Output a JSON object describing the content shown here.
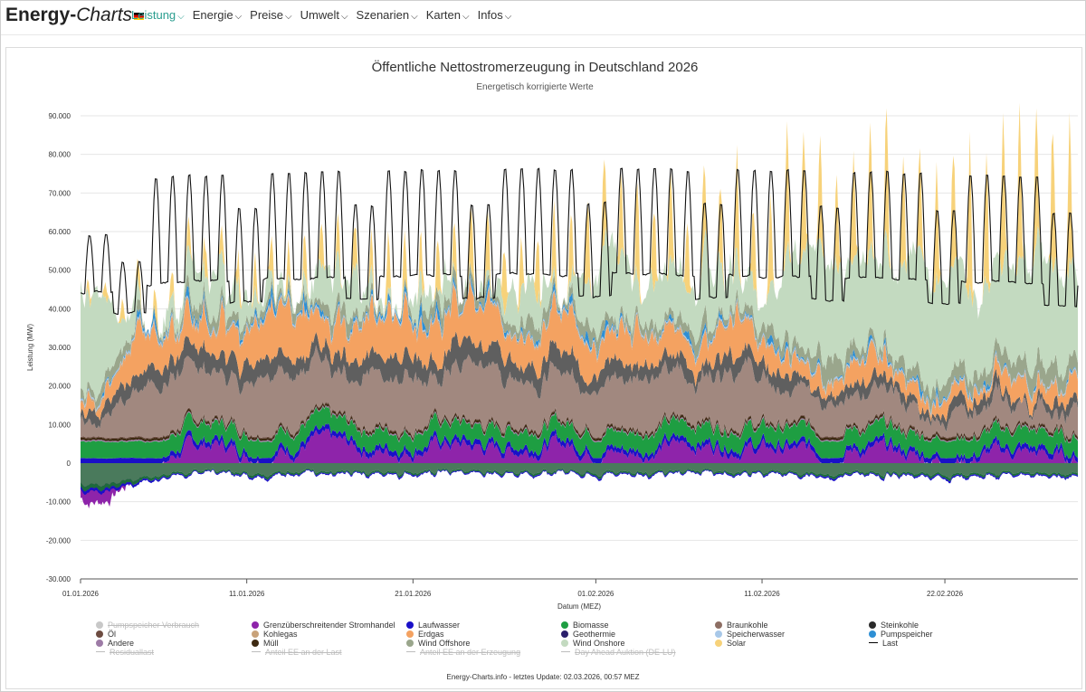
{
  "nav": {
    "brand_main": "Energy-",
    "brand_italic": "Charts",
    "items": [
      {
        "label": "Leistung",
        "active": true
      },
      {
        "label": "Energie",
        "active": false
      },
      {
        "label": "Preise",
        "active": false
      },
      {
        "label": "Umwelt",
        "active": false
      },
      {
        "label": "Szenarien",
        "active": false
      },
      {
        "label": "Karten",
        "active": false
      },
      {
        "label": "Infos",
        "active": false
      }
    ]
  },
  "chart_data": {
    "type": "area",
    "title": "Öffentliche Nettostromerzeugung in Deutschland 2026",
    "subtitle": "Energetisch korrigierte Werte",
    "xlabel": "Datum (MEZ)",
    "ylabel": "Leistung (MW)",
    "ylim": [
      -30000,
      90000
    ],
    "yticks": [
      -30000,
      -20000,
      -10000,
      0,
      10000,
      20000,
      30000,
      40000,
      50000,
      60000,
      70000,
      80000,
      90000
    ],
    "ytick_labels": [
      "-30.000",
      "-20.000",
      "-10.000",
      "0",
      "10.000",
      "20.000",
      "30.000",
      "40.000",
      "50.000",
      "60.000",
      "70.000",
      "80.000",
      "90.000"
    ],
    "xlim_days": [
      0,
      60
    ],
    "xticks": [
      {
        "day": 0,
        "label": "01.01.2026"
      },
      {
        "day": 10,
        "label": "11.01.2026"
      },
      {
        "day": 20,
        "label": "21.01.2026"
      },
      {
        "day": 31,
        "label": "01.02.2026"
      },
      {
        "day": 41,
        "label": "11.02.2026"
      },
      {
        "day": 52,
        "label": "22.02.2026"
      }
    ],
    "series_order": [
      "Grenzüberschreitender Stromhandel",
      "Laufwasser",
      "Biomasse",
      "Geothermie",
      "Andere",
      "Müll",
      "Öl",
      "Braunkohle",
      "Steinkohle",
      "Erdgas",
      "Kohlegas",
      "Speicherwasser",
      "Pumpspeicher",
      "Wind Offshore",
      "Wind Onshore",
      "Solar"
    ],
    "daily_mean_mw": {
      "Grenzüberschreitender Stromhandel": [
        -9000,
        -10000,
        -8000,
        -5000,
        -2000,
        0,
        3000,
        4500,
        5000,
        4000,
        2500,
        2500,
        3000,
        4000,
        5500,
        5000,
        4500,
        3500,
        3000,
        3500,
        3500,
        4500,
        5000,
        4500,
        4000,
        3500,
        3500,
        4000,
        4500,
        5000,
        4000,
        3500,
        3000,
        2500,
        3000,
        4000,
        4500,
        5000,
        4500,
        4500,
        4000,
        3500,
        3500,
        3000,
        2500,
        2500,
        3000,
        3500,
        3000,
        2500,
        2000,
        1500,
        1000,
        1000,
        1500,
        2500,
        3000,
        2500,
        2000,
        1500,
        1500
      ],
      "Laufwasser": [
        1300,
        1300,
        1300,
        1300,
        1300,
        1300,
        1300,
        1300,
        1300,
        1300,
        1300,
        1300,
        1300,
        1300,
        1300,
        1300,
        1300,
        1300,
        1300,
        1300,
        1300,
        1300,
        1300,
        1300,
        1300,
        1300,
        1300,
        1300,
        1300,
        1300,
        1300,
        1300,
        1300,
        1300,
        1300,
        1300,
        1300,
        1300,
        1300,
        1300,
        1300,
        1300,
        1300,
        1300,
        1300,
        1300,
        1300,
        1300,
        1300,
        1300,
        1300,
        1300,
        1300,
        1300,
        1300,
        1300,
        1300,
        1300,
        1300,
        1300,
        1300
      ],
      "Biomasse": [
        4300,
        4300,
        4300,
        4300,
        4300,
        4300,
        4300,
        4300,
        4300,
        4300,
        4300,
        4300,
        4300,
        4300,
        4300,
        4300,
        4300,
        4300,
        4300,
        4300,
        4300,
        4300,
        4300,
        4300,
        4300,
        4300,
        4300,
        4300,
        4300,
        4300,
        4300,
        4300,
        4300,
        4300,
        4300,
        4300,
        4300,
        4300,
        4300,
        4300,
        4300,
        4300,
        4300,
        4300,
        4300,
        4300,
        4300,
        4300,
        4300,
        4300,
        4300,
        4300,
        4300,
        4300,
        4300,
        4300,
        4300,
        4300,
        4300,
        4300,
        4300
      ],
      "Braunkohle": [
        3000,
        4000,
        7000,
        10000,
        13000,
        15000,
        14000,
        12000,
        11000,
        12000,
        13000,
        14000,
        15000,
        14000,
        12000,
        11000,
        12000,
        13000,
        14000,
        14000,
        13000,
        12000,
        13000,
        14000,
        14000,
        13000,
        12000,
        12000,
        13000,
        14000,
        12000,
        11000,
        12000,
        13000,
        13000,
        12000,
        11000,
        10000,
        11000,
        12000,
        12000,
        11000,
        10000,
        9000,
        8000,
        7000,
        8000,
        9000,
        9000,
        8000,
        6000,
        5000,
        5000,
        6000,
        7000,
        7000,
        6000,
        5000,
        5000,
        6000,
        6000
      ],
      "Steinkohle": [
        1000,
        1500,
        3000,
        4000,
        5000,
        5500,
        5000,
        4500,
        4000,
        4500,
        5000,
        5500,
        5000,
        4500,
        4000,
        4500,
        5000,
        5000,
        5500,
        5000,
        4500,
        4500,
        5000,
        5500,
        5000,
        4500,
        4000,
        4500,
        5000,
        5000,
        4500,
        4000,
        4000,
        4500,
        4500,
        4000,
        3500,
        3500,
        4000,
        4000,
        4000,
        3500,
        3000,
        3000,
        2500,
        2500,
        3000,
        3000,
        3000,
        2500,
        2000,
        1500,
        1500,
        2000,
        2500,
        2500,
        2000,
        2000,
        2000,
        2000,
        2000
      ],
      "Erdgas": [
        2000,
        3000,
        6000,
        9000,
        11000,
        12000,
        11000,
        9000,
        8000,
        9000,
        10000,
        11000,
        12000,
        11000,
        9000,
        8000,
        9000,
        10000,
        11000,
        11000,
        10000,
        9000,
        10000,
        11000,
        11000,
        10000,
        9000,
        9000,
        10000,
        11000,
        9000,
        8000,
        8000,
        9000,
        9000,
        8000,
        7000,
        7000,
        8000,
        8000,
        8000,
        7000,
        6000,
        6000,
        5000,
        4500,
        5000,
        5500,
        5500,
        5000,
        4000,
        3500,
        3500,
        4000,
        4500,
        4500,
        4000,
        3500,
        3500,
        4000,
        4000
      ],
      "Pumpspeicher": [
        500,
        500,
        800,
        1000,
        1200,
        1200,
        1100,
        1000,
        900,
        1000,
        1100,
        1200,
        1200,
        1100,
        1000,
        900,
        1000,
        1100,
        1200,
        1200,
        1100,
        1000,
        1100,
        1200,
        1200,
        1100,
        1000,
        1000,
        1100,
        1200,
        1000,
        900,
        900,
        1000,
        1000,
        900,
        800,
        800,
        900,
        900,
        900,
        800,
        700,
        700,
        600,
        600,
        700,
        700,
        700,
        600,
        500,
        500,
        500,
        600,
        600,
        600,
        500,
        500,
        500,
        500,
        500
      ],
      "Wind Offshore": [
        3500,
        3000,
        2500,
        2000,
        1500,
        1500,
        2000,
        2500,
        3000,
        2500,
        2000,
        1500,
        1500,
        2000,
        2500,
        3000,
        2500,
        2000,
        1500,
        1500,
        2000,
        2500,
        2000,
        1500,
        1500,
        2000,
        2500,
        3000,
        2500,
        2000,
        2500,
        3000,
        3000,
        2500,
        2000,
        2500,
        3000,
        3000,
        2500,
        2000,
        2000,
        2500,
        3000,
        3500,
        3500,
        3500,
        3000,
        3000,
        3000,
        3500,
        4000,
        4000,
        4000,
        3500,
        3000,
        3000,
        3500,
        4000,
        4000,
        3500,
        3500
      ],
      "Wind Onshore": [
        28000,
        25000,
        18000,
        10000,
        5000,
        3000,
        4000,
        7000,
        10000,
        8000,
        5000,
        3000,
        2000,
        3000,
        6000,
        10000,
        8000,
        5000,
        3000,
        2000,
        3000,
        5000,
        4000,
        3000,
        2000,
        3000,
        6000,
        10000,
        8000,
        5000,
        9000,
        14000,
        16000,
        12000,
        8000,
        10000,
        15000,
        17000,
        13000,
        9000,
        8000,
        11000,
        16000,
        22000,
        26000,
        28000,
        24000,
        20000,
        18000,
        22000,
        28000,
        30000,
        30000,
        26000,
        20000,
        17000,
        20000,
        25000,
        27000,
        23000,
        20000
      ],
      "Solar_peak": [
        3000,
        3000,
        4000,
        5000,
        5000,
        6000,
        6000,
        7000,
        7000,
        8000,
        8000,
        9000,
        9000,
        10000,
        10000,
        10000,
        11000,
        11000,
        12000,
        12000,
        13000,
        13000,
        14000,
        14000,
        15000,
        15000,
        16000,
        16000,
        17000,
        17000,
        18000,
        18000,
        19000,
        19000,
        20000,
        20000,
        21000,
        22000,
        22000,
        23000,
        24000,
        24000,
        25000,
        26000,
        26000,
        27000,
        28000,
        28000,
        29000,
        30000,
        30000,
        31000,
        32000,
        32000,
        33000,
        34000,
        34000,
        35000,
        36000,
        36000,
        37000
      ]
    },
    "load_daily_range_mw": {
      "min_approx": 44000,
      "max_approx": 78000
    },
    "legend": [
      {
        "name": "Pumpspeicher Verbrauch",
        "color": "#c8c8c8",
        "kind": "dot",
        "visible": false
      },
      {
        "name": "Grenzüberschreitender Stromhandel",
        "color": "#8e24aa",
        "kind": "dot",
        "visible": true
      },
      {
        "name": "Laufwasser",
        "color": "#1a10c8",
        "kind": "dot",
        "visible": true
      },
      {
        "name": "Biomasse",
        "color": "#1e9e42",
        "kind": "dot",
        "visible": true
      },
      {
        "name": "Braunkohle",
        "color": "#8d6e63",
        "kind": "dot",
        "visible": true
      },
      {
        "name": "Steinkohle",
        "color": "#2b2b2b",
        "kind": "dot",
        "visible": true
      },
      {
        "name": "Öl",
        "color": "#6d4c41",
        "kind": "dot",
        "visible": true
      },
      {
        "name": "Kohlegas",
        "color": "#c8a27a",
        "kind": "dot",
        "visible": true
      },
      {
        "name": "Erdgas",
        "color": "#f4a261",
        "kind": "dot",
        "visible": true
      },
      {
        "name": "Geothermie",
        "color": "#2a1f6b",
        "kind": "dot",
        "visible": true
      },
      {
        "name": "Speicherwasser",
        "color": "#a8c8e8",
        "kind": "dot",
        "visible": true
      },
      {
        "name": "Pumpspeicher",
        "color": "#2e8fd4",
        "kind": "dot",
        "visible": true
      },
      {
        "name": "Andere",
        "color": "#9d7ba6",
        "kind": "dot",
        "visible": true
      },
      {
        "name": "Müll",
        "color": "#3e2a12",
        "kind": "dot",
        "visible": true
      },
      {
        "name": "Wind Offshore",
        "color": "#9aa68c",
        "kind": "dot",
        "visible": true
      },
      {
        "name": "Wind Onshore",
        "color": "#c3dac0",
        "kind": "dot",
        "visible": true
      },
      {
        "name": "Solar",
        "color": "#f7d27a",
        "kind": "dot",
        "visible": true
      },
      {
        "name": "Last",
        "color": "#000000",
        "kind": "line",
        "visible": true
      },
      {
        "name": "Residuallast",
        "color": "#bdbdbd",
        "kind": "line",
        "visible": false
      },
      {
        "name": "Anteil EE an der Last",
        "color": "#bdbdbd",
        "kind": "line",
        "visible": false
      },
      {
        "name": "Anteil EE an der Erzeugung",
        "color": "#bdbdbd",
        "kind": "line",
        "visible": false
      },
      {
        "name": "Day Ahead Auktion (DE-LU)",
        "color": "#bdbdbd",
        "kind": "line",
        "visible": false
      }
    ]
  },
  "footer": "Energy-Charts.info - letztes Update: 02.03.2026, 00:57 MEZ"
}
